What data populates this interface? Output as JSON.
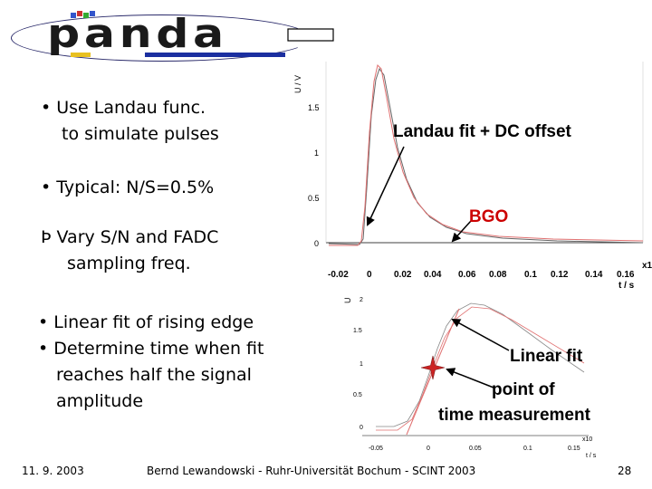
{
  "logo": {
    "text": "panda"
  },
  "bullets_top": [
    "• Use Landau func.",
    "to simulate pulses",
    "• Typical: N/S=0.5%",
    "Þ Vary S/N and FADC",
    "sampling freq."
  ],
  "bullets_bottom": [
    "• Linear fit of rising edge",
    "• Determine time when fit",
    "reaches half the signal",
    "amplitude"
  ],
  "plot1": {
    "ylabel": "U / V",
    "xlabel": "t / s",
    "xunit": "x1",
    "yticks": [
      "1.5",
      "1",
      "0.5",
      "0"
    ],
    "xticks": [
      "-0.02",
      "0",
      "0.02",
      "0.04",
      "0.06",
      "0.08",
      "0.1",
      "0.12",
      "0.14",
      "0.16"
    ]
  },
  "plot2": {
    "ylabel": "U",
    "xlabel": "t / s",
    "xunit": "x10",
    "yticks": [
      "2",
      "1.5",
      "1",
      "0.5",
      "0"
    ],
    "xticks": [
      "-0.05",
      "0",
      "0.05",
      "0.1",
      "0.15"
    ]
  },
  "annotations": {
    "landau": "Landau fit + DC offset",
    "bgo": "BGO",
    "linear": "Linear fit",
    "point1": "point of",
    "point2": "time measurement"
  },
  "footer": {
    "date": "11. 9. 2003",
    "author": "Bernd Lewandowski - Ruhr-Universität Bochum - SCINT 2003",
    "page": "28"
  },
  "colors": {
    "bgo": "#cc0000",
    "logo_bar": "#1b2fa0",
    "curve_dark": "#666666",
    "curve_red": "#e07070",
    "marker": "#cc2222"
  }
}
